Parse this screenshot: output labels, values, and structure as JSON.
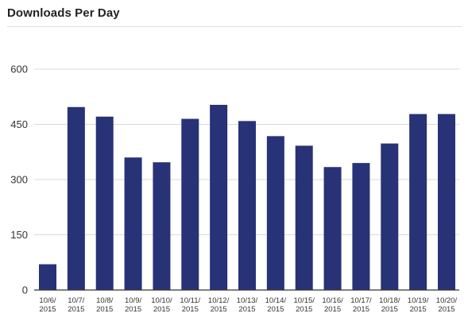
{
  "panel": {
    "title": "Downloads Per Day"
  },
  "colors": {
    "bar": "#283276",
    "grid": "#d9d9d9",
    "axis": "#333333"
  },
  "chart_data": {
    "type": "bar",
    "title": "",
    "xlabel": "",
    "ylabel": "",
    "ylim": [
      0,
      600
    ],
    "yticks": [
      0,
      150,
      300,
      450,
      600
    ],
    "grid": true,
    "legend": "none",
    "categories": [
      "10/6/2015",
      "10/7/2015",
      "10/8/2015",
      "10/9/2015",
      "10/10/2015",
      "10/11/2015",
      "10/12/2015",
      "10/13/2015",
      "10/14/2015",
      "10/15/2015",
      "10/16/2015",
      "10/17/2015",
      "10/18/2015",
      "10/19/2015",
      "10/20/2015"
    ],
    "tick_labels": [
      [
        "10/6/",
        "2015"
      ],
      [
        "10/7/",
        "2015"
      ],
      [
        "10/8/",
        "2015"
      ],
      [
        "10/9/",
        "2015"
      ],
      [
        "10/10/",
        "2015"
      ],
      [
        "10/11/",
        "2015"
      ],
      [
        "10/12/",
        "2015"
      ],
      [
        "10/13/",
        "2015"
      ],
      [
        "10/14/",
        "2015"
      ],
      [
        "10/15/",
        "2015"
      ],
      [
        "10/16/",
        "2015"
      ],
      [
        "10/17/",
        "2015"
      ],
      [
        "10/18/",
        "2015"
      ],
      [
        "10/19/",
        "2015"
      ],
      [
        "10/20/",
        "2015"
      ]
    ],
    "values": [
      70,
      497,
      471,
      360,
      347,
      465,
      503,
      459,
      418,
      392,
      334,
      345,
      398,
      478,
      478
    ]
  }
}
